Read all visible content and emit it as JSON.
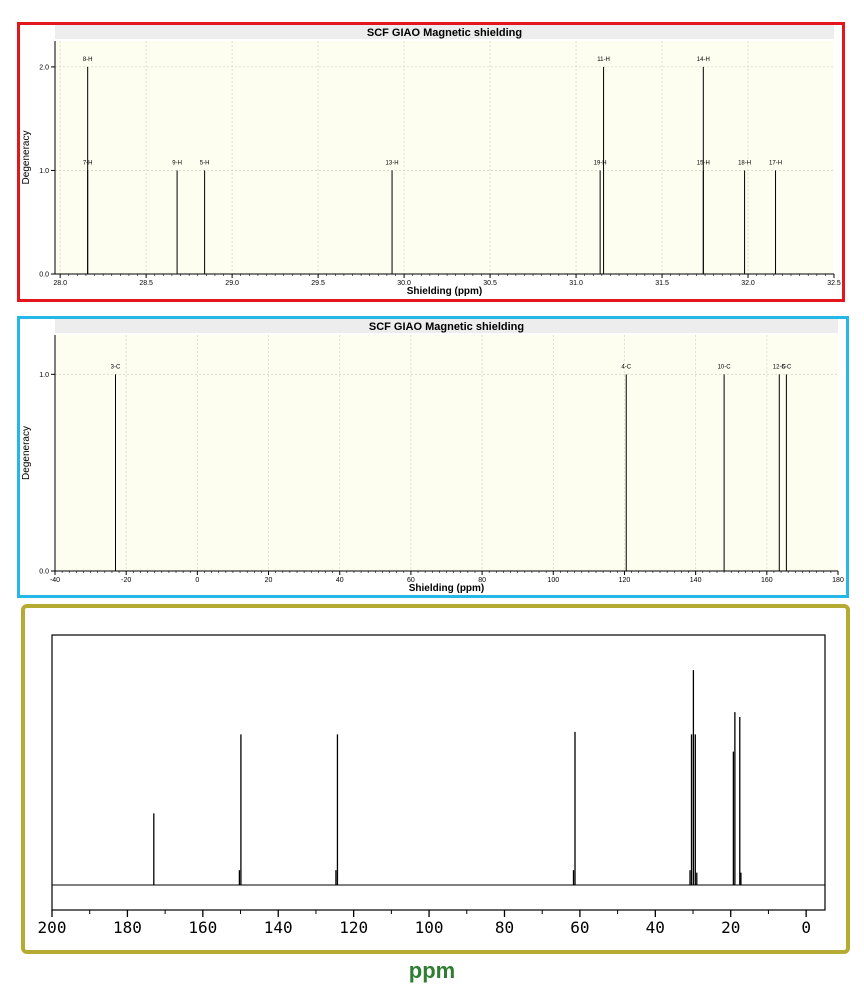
{
  "colors": {
    "panel1_border": "#e3161b",
    "panel2_border": "#25b8e6",
    "panel3_border": "#b5ab33",
    "plot_background": "#fdfdf0",
    "ppm_label_color": "#2e7d32"
  },
  "ppm_label": "ppm",
  "chart_data": [
    {
      "type": "bar",
      "subtype": "stick-spectrum",
      "title": "SCF GIAO Magnetic shielding",
      "xlabel": "Shielding (ppm)",
      "ylabel": "Degeneracy",
      "xlim": [
        27.97,
        32.5
      ],
      "ylim": [
        0,
        2.25
      ],
      "x_ticks": [
        28.0,
        28.5,
        29.0,
        29.5,
        30.0,
        30.5,
        31.0,
        31.5,
        32.0,
        32.5
      ],
      "x_tick_labels": [
        "28.0",
        "28.5",
        "29.0",
        "29.5",
        "30.0",
        "30.5",
        "31.0",
        "31.5",
        "32.0",
        "32.5"
      ],
      "y_ticks": [
        0,
        1,
        2
      ],
      "y_tick_labels": [
        "0.0",
        "1.0",
        "2.0"
      ],
      "grid": true,
      "peaks": [
        {
          "x": 28.16,
          "y": 2,
          "label": "8-H"
        },
        {
          "x": 28.16,
          "y": 1,
          "label": "7-H"
        },
        {
          "x": 28.68,
          "y": 1,
          "label": "9-H"
        },
        {
          "x": 28.84,
          "y": 1,
          "label": "5-H"
        },
        {
          "x": 29.93,
          "y": 1,
          "label": "13-H"
        },
        {
          "x": 31.14,
          "y": 1,
          "label": "19-H"
        },
        {
          "x": 31.16,
          "y": 2,
          "label": "11-H"
        },
        {
          "x": 31.74,
          "y": 2,
          "label": "14-H"
        },
        {
          "x": 31.74,
          "y": 1,
          "label": "15-H"
        },
        {
          "x": 31.98,
          "y": 1,
          "label": "18-H"
        },
        {
          "x": 32.16,
          "y": 1,
          "label": "17-H"
        }
      ]
    },
    {
      "type": "bar",
      "subtype": "stick-spectrum",
      "title": "SCF GIAO Magnetic shielding",
      "xlabel": "Shielding (ppm)",
      "ylabel": "Degeneracy",
      "xlim": [
        -40,
        180
      ],
      "ylim": [
        0,
        1.2
      ],
      "x_ticks": [
        -40,
        -20,
        0,
        20,
        40,
        60,
        80,
        100,
        120,
        140,
        160,
        180
      ],
      "x_tick_labels": [
        "-40",
        "-20",
        "0",
        "20",
        "40",
        "60",
        "80",
        "100",
        "120",
        "140",
        "160",
        "180"
      ],
      "y_ticks": [
        0,
        1
      ],
      "y_tick_labels": [
        "0.0",
        "1.0"
      ],
      "grid": true,
      "peaks": [
        {
          "x": -23,
          "y": 1,
          "label": "3-C"
        },
        {
          "x": 120.5,
          "y": 1,
          "label": "4-C"
        },
        {
          "x": 148,
          "y": 1,
          "label": "10-C"
        },
        {
          "x": 163.5,
          "y": 1,
          "label": "12-C"
        },
        {
          "x": 165.5,
          "y": 1,
          "label": "6-C"
        }
      ]
    },
    {
      "type": "bar",
      "subtype": "nmr-spectrum",
      "xlabel": "ppm",
      "xlim": [
        200,
        -5
      ],
      "reversed_x": true,
      "x_ticks": [
        200,
        180,
        160,
        140,
        120,
        100,
        80,
        60,
        40,
        20,
        0
      ],
      "x_tick_labels": [
        "200",
        "180",
        "160",
        "140",
        "120",
        "100",
        "80",
        "60",
        "40",
        "20",
        "0"
      ],
      "ylim": [
        0,
        1
      ],
      "grid": false,
      "peaks": [
        {
          "x": 173.0,
          "y": 0.29
        },
        {
          "x": 150.3,
          "y": 0.06
        },
        {
          "x": 149.9,
          "y": 0.61
        },
        {
          "x": 124.7,
          "y": 0.06
        },
        {
          "x": 124.3,
          "y": 0.61
        },
        {
          "x": 61.7,
          "y": 0.06
        },
        {
          "x": 61.3,
          "y": 0.62
        },
        {
          "x": 30.8,
          "y": 0.06
        },
        {
          "x": 30.4,
          "y": 0.61
        },
        {
          "x": 29.9,
          "y": 0.87
        },
        {
          "x": 29.4,
          "y": 0.61
        },
        {
          "x": 29.0,
          "y": 0.05
        },
        {
          "x": 19.3,
          "y": 0.54
        },
        {
          "x": 18.9,
          "y": 0.7
        },
        {
          "x": 17.6,
          "y": 0.68
        },
        {
          "x": 17.3,
          "y": 0.05
        }
      ]
    }
  ]
}
